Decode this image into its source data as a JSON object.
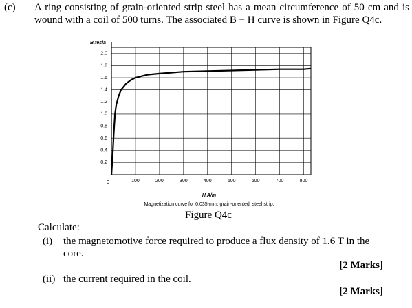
{
  "question": {
    "label": "(c)",
    "text": "A ring consisting of grain-oriented strip steel has a mean circumference of 50 cm and is wound with a coil of 500 turns. The associated B − H curve is shown in Figure Q4c."
  },
  "chart_data": {
    "type": "line",
    "y_label": "B,tesla",
    "x_label": "H,A/m",
    "caption": "Magnetization curve for 0.035-mm, grain-oriented, steel strip.",
    "x": [
      0,
      5,
      10,
      15,
      20,
      30,
      40,
      60,
      80,
      100,
      150,
      200,
      300,
      400,
      500,
      600,
      700,
      800,
      830
    ],
    "values": [
      0,
      0.3,
      0.7,
      1.0,
      1.15,
      1.3,
      1.4,
      1.5,
      1.56,
      1.6,
      1.65,
      1.67,
      1.7,
      1.71,
      1.72,
      1.73,
      1.74,
      1.74,
      1.75
    ],
    "color": "#000000",
    "xlim": [
      0,
      830
    ],
    "ylim": [
      0,
      2.1
    ],
    "xticks": [
      0,
      100,
      200,
      300,
      400,
      500,
      600,
      700,
      800
    ],
    "yticks": [
      0.2,
      0.4,
      0.6,
      0.8,
      {
        "value": 1,
        "label": "1.0"
      },
      1.2,
      1.4,
      1.6,
      1.8,
      {
        "value": 2,
        "label": "2.0"
      }
    ],
    "grid": true
  },
  "figure_label": "Figure Q4c",
  "calculate": "Calculate:",
  "parts": [
    {
      "label": "(i)",
      "text": "the magnetomotive force required to produce a flux density of 1.6 T in the core.",
      "marks": "[2 Marks]"
    },
    {
      "label": "(ii)",
      "text": "the current required in the coil.",
      "marks": "[2 Marks]"
    }
  ]
}
